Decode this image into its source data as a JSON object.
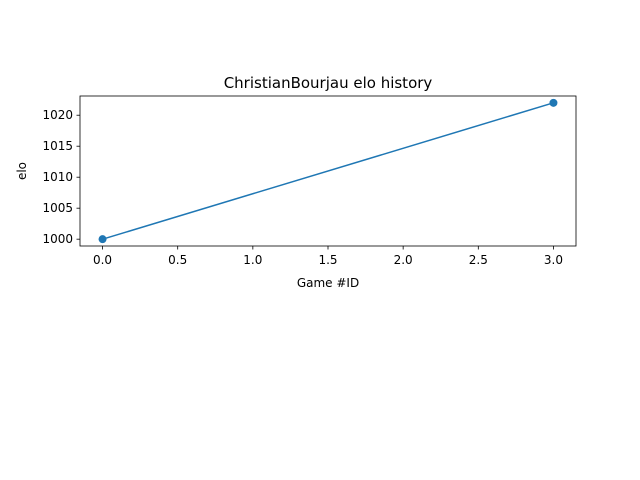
{
  "chart_data": {
    "type": "line",
    "title": "ChristianBourjau elo history",
    "xlabel": "Game #ID",
    "ylabel": "elo",
    "x": [
      0,
      3
    ],
    "series": [
      {
        "values": [
          1000,
          1022
        ],
        "color": "#1f77b4",
        "marker": "circle"
      }
    ],
    "xlim": [
      -0.15,
      3.15
    ],
    "ylim": [
      998.9,
      1023.1
    ],
    "xticks": [
      0.0,
      0.5,
      1.0,
      1.5,
      2.0,
      2.5,
      3.0
    ],
    "xtick_labels": [
      "0.0",
      "0.5",
      "1.0",
      "1.5",
      "2.0",
      "2.5",
      "3.0"
    ],
    "yticks": [
      1000,
      1005,
      1010,
      1015,
      1020
    ],
    "ytick_labels": [
      "1000",
      "1005",
      "1010",
      "1015",
      "1020"
    ],
    "grid": false,
    "legend": "none"
  }
}
